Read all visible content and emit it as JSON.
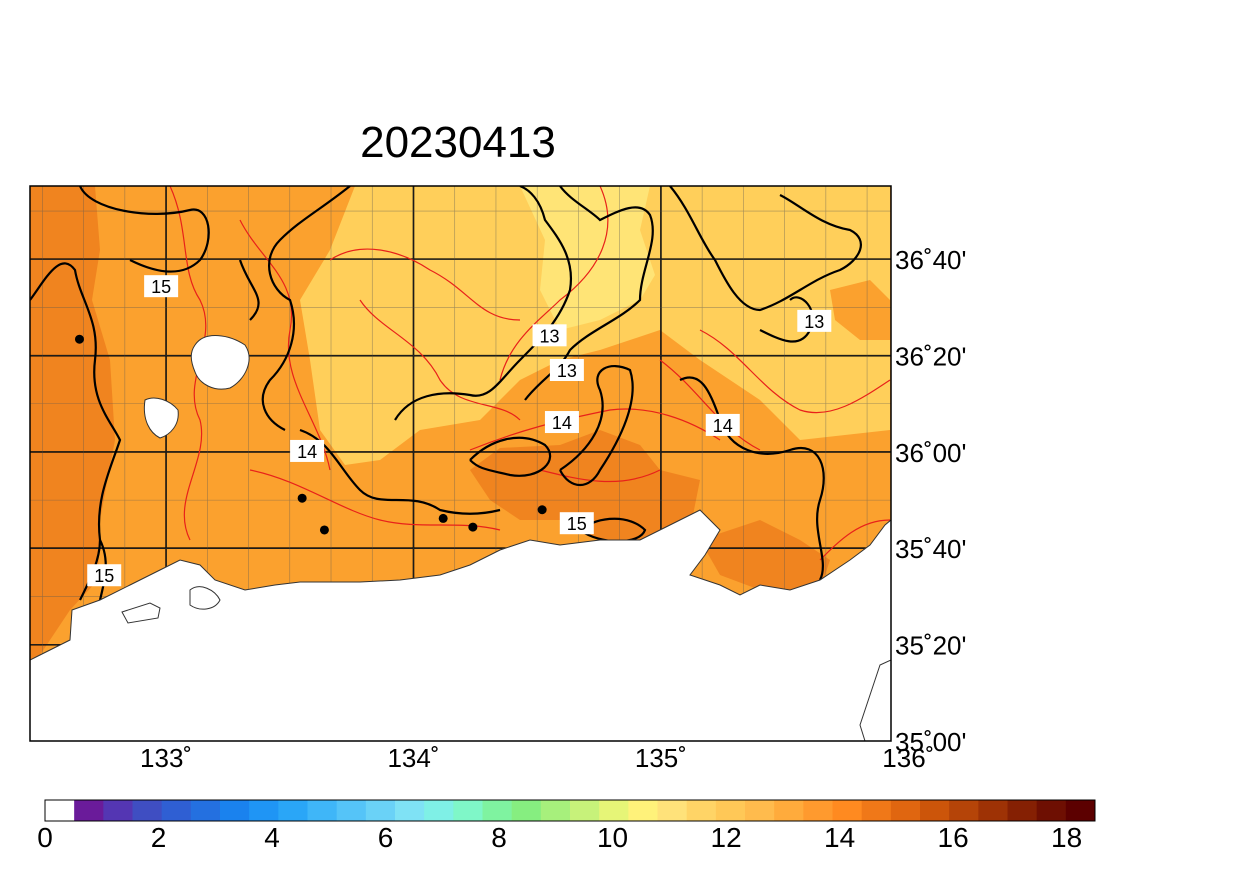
{
  "title": "20230413",
  "map": {
    "lat_labels": [
      "36˚40'",
      "36˚20'",
      "36˚00'",
      "35˚40'",
      "35˚20'",
      "35˚00'"
    ],
    "lon_labels": [
      "133˚",
      "134˚",
      "135˚",
      "136˚"
    ],
    "lat_values": [
      36.667,
      36.333,
      36.0,
      35.667,
      35.333,
      35.0
    ],
    "lon_values": [
      133,
      134,
      135,
      136
    ],
    "extent": {
      "lon_min": 132.45,
      "lon_max": 135.93,
      "lat_min": 35.0,
      "lat_max": 36.92
    },
    "contour_labels": [
      {
        "text": "15",
        "lon": 132.98,
        "lat": 36.57
      },
      {
        "text": "13",
        "lon": 134.55,
        "lat": 36.4
      },
      {
        "text": "13",
        "lon": 134.62,
        "lat": 36.28
      },
      {
        "text": "13",
        "lon": 135.62,
        "lat": 36.45
      },
      {
        "text": "14",
        "lon": 134.6,
        "lat": 36.1
      },
      {
        "text": "14",
        "lon": 135.25,
        "lat": 36.09
      },
      {
        "text": "14",
        "lon": 133.57,
        "lat": 36.0
      },
      {
        "text": "15",
        "lon": 134.66,
        "lat": 35.75
      },
      {
        "text": "15",
        "lon": 132.75,
        "lat": 35.57
      }
    ],
    "stations": [
      {
        "lon": 132.65,
        "lat": 36.39
      },
      {
        "lon": 133.55,
        "lat": 35.84
      },
      {
        "lon": 133.64,
        "lat": 35.73
      },
      {
        "lon": 134.12,
        "lat": 35.77
      },
      {
        "lon": 134.24,
        "lat": 35.74
      },
      {
        "lon": 134.52,
        "lat": 35.8
      }
    ]
  },
  "colorbar": {
    "min": 0,
    "max": 18.5,
    "labels": [
      "0",
      "2",
      "4",
      "6",
      "8",
      "10",
      "12",
      "14",
      "16",
      "18"
    ],
    "label_values": [
      0,
      2,
      4,
      6,
      8,
      10,
      12,
      14,
      16,
      18
    ],
    "colors": [
      "#ffffff",
      "#6a1b9a",
      "#5436b3",
      "#3f4ec2",
      "#2f5fd3",
      "#2470e0",
      "#1a82ee",
      "#1f95f5",
      "#2aa6f7",
      "#3fb6f8",
      "#55c4f8",
      "#6ad2f7",
      "#7fe2f5",
      "#7ff0e6",
      "#7ff7c8",
      "#7ff3a0",
      "#86ee80",
      "#a7f07c",
      "#c7f27a",
      "#e6f577",
      "#fff27a",
      "#ffe27a",
      "#ffd466",
      "#ffc857",
      "#ffbb4d",
      "#ffab3c",
      "#ff9a2e",
      "#ff8a20",
      "#f07818",
      "#e06610",
      "#cc550a",
      "#b54408",
      "#9e3205",
      "#852003",
      "#6e0f02",
      "#5c0000"
    ]
  },
  "field_colors": {
    "deep": "#f0841f",
    "mid": "#fba12e",
    "light": "#ffcf5a",
    "pale": "#ffe476"
  }
}
